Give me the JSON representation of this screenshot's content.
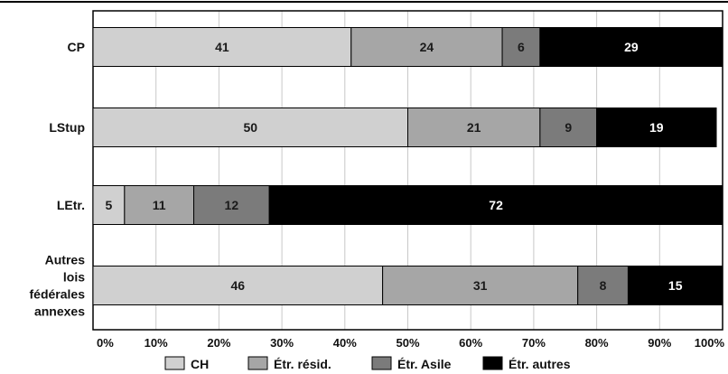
{
  "chart_data": {
    "type": "bar",
    "orientation": "horizontal",
    "stacked": true,
    "categories": [
      "CP",
      "LStup",
      "LEtr.",
      "Autres lois fédérales annexes"
    ],
    "category_lines": [
      [
        "CP"
      ],
      [
        "LStup"
      ],
      [
        "LEtr."
      ],
      [
        "Autres",
        "lois",
        "fédérales",
        "annexes"
      ]
    ],
    "series": [
      {
        "name": "CH",
        "values": [
          41,
          50,
          5,
          46
        ],
        "color": "#d0d0d0",
        "label_color": "#1a1a1a"
      },
      {
        "name": "Étr. résid.",
        "values": [
          24,
          21,
          11,
          31
        ],
        "color": "#a6a6a6",
        "label_color": "#1a1a1a"
      },
      {
        "name": "Étr. Asile",
        "values": [
          6,
          9,
          12,
          8
        ],
        "color": "#7b7b7b",
        "label_color": "#1a1a1a"
      },
      {
        "name": "Étr. autres",
        "values": [
          29,
          19,
          72,
          15
        ],
        "color": "#000000",
        "label_color": "#ffffff"
      }
    ],
    "xlim": [
      0,
      100
    ],
    "x_ticks": [
      "0%",
      "10%",
      "20%",
      "30%",
      "40%",
      "50%",
      "60%",
      "70%",
      "80%",
      "90%",
      "100%"
    ],
    "grid": true,
    "legend_position": "bottom"
  }
}
